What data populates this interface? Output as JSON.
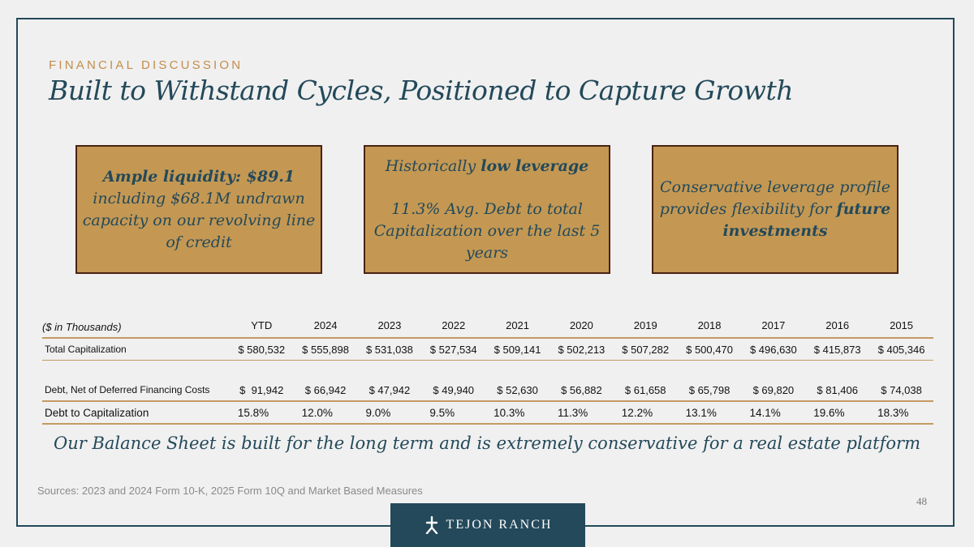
{
  "header": {
    "eyebrow": "FINANCIAL DISCUSSION",
    "title": "Built to Withstand Cycles, Positioned to Capture Growth"
  },
  "boxes": {
    "liquidity": {
      "bold": "Ample liquidity: $89.1",
      "text": "including $68.1M undrawn capacity on our revolving line of credit"
    },
    "leverage": {
      "prefix": "Historically ",
      "bold": "low leverage",
      "text": "11.3% Avg. Debt to total Capitalization over the last 5 years"
    },
    "profile": {
      "text": "Conservative leverage profile provides flexibility for ",
      "bold": "future investments"
    }
  },
  "table": {
    "unit_label": "($ in Thousands)",
    "columns": [
      "YTD",
      "2024",
      "2023",
      "2022",
      "2021",
      "2020",
      "2019",
      "2018",
      "2017",
      "2016",
      "2015"
    ],
    "rows": [
      {
        "label": "Total Capitalization",
        "values": [
          "$ 580,532",
          "$ 555,898",
          "$ 531,038",
          "$ 527,534",
          "$ 509,141",
          "$ 502,213",
          "$ 507,282",
          "$ 500,470",
          "$ 496,630",
          "$ 415,873",
          "$ 405,346"
        ]
      },
      {
        "label": "Debt, Net of Deferred Financing Costs",
        "values": [
          "$  91,942",
          "$ 66,942",
          "$ 47,942",
          "$ 49,940",
          "$ 52,630",
          "$ 56,882",
          "$ 61,658",
          "$ 65,798",
          "$ 69,820",
          "$ 81,406",
          "$ 74,038"
        ]
      },
      {
        "label": "Debt to Capitalization",
        "values": [
          "15.8%",
          "12.0%",
          "9.0%",
          "9.5%",
          "10.3%",
          "11.3%",
          "12.2%",
          "13.1%",
          "14.1%",
          "19.6%",
          "18.3%"
        ]
      }
    ]
  },
  "tagline": "Our Balance Sheet is built for the long term and is extremely conservative for a real estate platform",
  "sources": "Sources: 2023 and 2024 Form 10-K, 2025 Form 10Q and Market Based Measures",
  "page_number": "48",
  "logo": {
    "text": "TEJON RANCH",
    "icon": "tejon-ranch-logo-icon"
  },
  "colors": {
    "navy": "#23495a",
    "gold": "#c49853",
    "accent": "#c28d4c",
    "border": "#4a2213"
  }
}
